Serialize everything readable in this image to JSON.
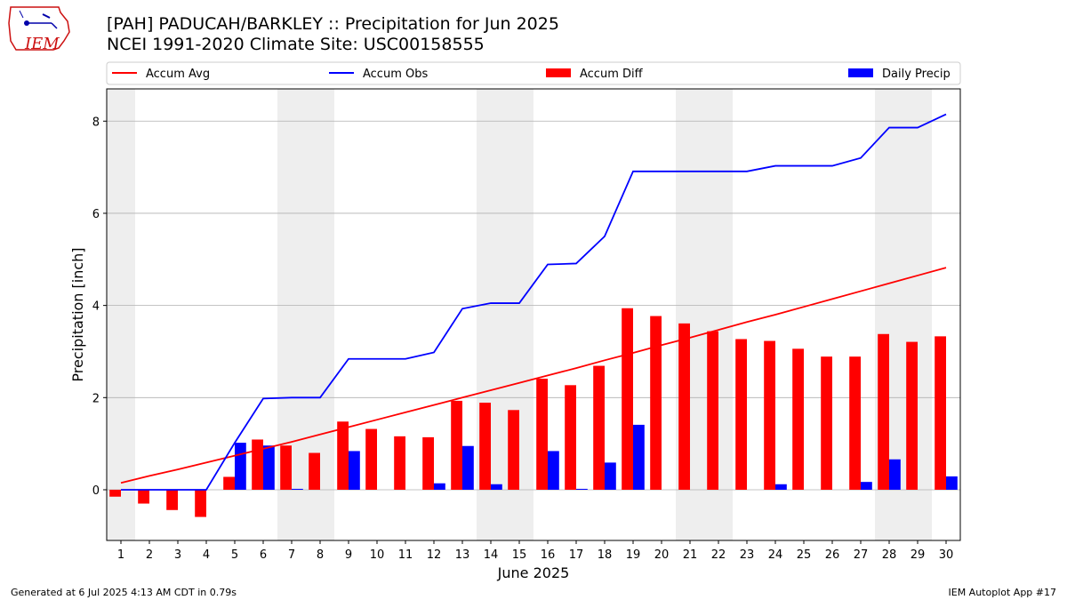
{
  "title": "[PAH] PADUCAH/BARKLEY :: Precipitation for Jun 2025",
  "subtitle": "NCEI 1991-2020 Climate Site: USC00158555",
  "logo_text": "IEM",
  "footer_left": "Generated at 6 Jul 2025 4:13 AM CDT in 0.79s",
  "footer_right": "IEM Autoplot App #17",
  "chart_data": {
    "type": "bar",
    "xlabel": "June 2025",
    "ylabel": "Precipitation [inch]",
    "xlim": [
      0.5,
      30.5
    ],
    "ylim": [
      -1.1,
      8.7
    ],
    "yticks": [
      0,
      2,
      4,
      6,
      8
    ],
    "x": [
      1,
      2,
      3,
      4,
      5,
      6,
      7,
      8,
      9,
      10,
      11,
      12,
      13,
      14,
      15,
      16,
      17,
      18,
      19,
      20,
      21,
      22,
      23,
      24,
      25,
      26,
      27,
      28,
      29,
      30
    ],
    "shaded_days": [
      1,
      7,
      8,
      14,
      15,
      21,
      22,
      28,
      29
    ],
    "grid": true,
    "legend_position": "top",
    "series": [
      {
        "name": "Accum Avg",
        "kind": "line",
        "color": "#ff0000",
        "values": [
          0.15,
          0.3,
          0.44,
          0.59,
          0.74,
          0.89,
          1.04,
          1.2,
          1.36,
          1.52,
          1.68,
          1.84,
          2.0,
          2.16,
          2.32,
          2.48,
          2.64,
          2.81,
          2.97,
          3.14,
          3.3,
          3.47,
          3.64,
          3.8,
          3.97,
          4.14,
          4.31,
          4.48,
          4.65,
          4.82
        ]
      },
      {
        "name": "Accum Obs",
        "kind": "line",
        "color": "#0000ff",
        "values": [
          0.0,
          0.0,
          0.0,
          0.0,
          1.02,
          1.98,
          2.0,
          2.0,
          2.84,
          2.84,
          2.84,
          2.98,
          3.93,
          4.05,
          4.05,
          4.89,
          4.91,
          5.5,
          6.91,
          6.91,
          6.91,
          6.91,
          6.91,
          7.03,
          7.03,
          7.03,
          7.2,
          7.86,
          7.86,
          8.15
        ]
      },
      {
        "name": "Accum Diff",
        "kind": "bar",
        "color": "#ff0000",
        "values": [
          -0.15,
          -0.3,
          -0.44,
          -0.59,
          0.28,
          1.09,
          0.96,
          0.8,
          1.48,
          1.32,
          1.16,
          1.14,
          1.93,
          1.89,
          1.73,
          2.41,
          2.27,
          2.69,
          3.94,
          3.77,
          3.61,
          3.44,
          3.27,
          3.23,
          3.06,
          2.89,
          2.89,
          3.38,
          3.21,
          3.33
        ]
      },
      {
        "name": "Daily Precip",
        "kind": "bar",
        "color": "#0000ff",
        "values": [
          0.0,
          0.0,
          0.0,
          0.0,
          1.02,
          0.96,
          0.02,
          0.0,
          0.84,
          0.0,
          0.0,
          0.14,
          0.95,
          0.12,
          0.0,
          0.84,
          0.02,
          0.59,
          1.41,
          0.0,
          0.0,
          0.0,
          0.0,
          0.12,
          0.0,
          0.0,
          0.17,
          0.66,
          0.0,
          0.29
        ]
      }
    ]
  }
}
